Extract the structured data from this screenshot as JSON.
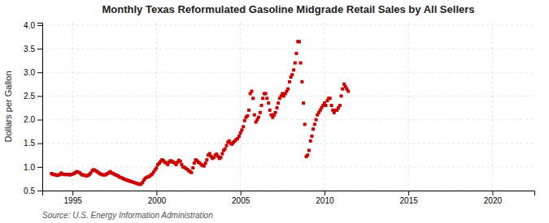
{
  "chart_data": {
    "type": "scatter",
    "title": "Monthly Texas Reformulated Gasoline Midgrade Retail Sales by All Sellers",
    "ylabel": "Dollars per Gallon",
    "annotations": [
      "Source: U.S. Energy Information Administration"
    ],
    "color": "#cc0000",
    "marker": "square",
    "grid": true,
    "xlim": [
      1993.2,
      2022.5
    ],
    "ylim": [
      0.5,
      4.05
    ],
    "xticks": [
      1995,
      2000,
      2005,
      2010,
      2015,
      2020
    ],
    "yticks": [
      0.5,
      {
        "value": 1.0,
        "label": "1.0"
      },
      1.5,
      {
        "value": 2.0,
        "label": "2.0"
      },
      2.5,
      {
        "value": 3.0,
        "label": "3.0"
      },
      3.5,
      {
        "value": 4.0,
        "label": "4.0"
      }
    ],
    "x": [
      1993.75,
      1993.83,
      1993.92,
      1994.0,
      1994.08,
      1994.17,
      1994.25,
      1994.33,
      1994.42,
      1994.5,
      1994.58,
      1994.67,
      1994.75,
      1994.83,
      1994.92,
      1995.0,
      1995.08,
      1995.17,
      1995.25,
      1995.33,
      1995.42,
      1995.5,
      1995.58,
      1995.67,
      1995.75,
      1995.83,
      1995.92,
      1996.0,
      1996.08,
      1996.17,
      1996.25,
      1996.33,
      1996.42,
      1996.5,
      1996.58,
      1996.67,
      1996.75,
      1996.83,
      1996.92,
      1997.0,
      1997.08,
      1997.17,
      1997.25,
      1997.33,
      1997.42,
      1997.5,
      1997.58,
      1997.67,
      1997.75,
      1997.83,
      1997.92,
      1998.0,
      1998.08,
      1998.17,
      1998.25,
      1998.33,
      1998.42,
      1998.5,
      1998.58,
      1998.67,
      1998.75,
      1998.83,
      1998.92,
      1999.0,
      1999.08,
      1999.17,
      1999.25,
      1999.33,
      1999.42,
      1999.5,
      1999.58,
      1999.67,
      1999.75,
      1999.83,
      1999.92,
      2000.0,
      2000.08,
      2000.17,
      2000.25,
      2000.33,
      2000.42,
      2000.5,
      2000.58,
      2000.67,
      2000.75,
      2000.83,
      2000.92,
      2001.0,
      2001.08,
      2001.17,
      2001.25,
      2001.33,
      2001.42,
      2001.5,
      2001.58,
      2001.67,
      2001.75,
      2001.83,
      2001.92,
      2002.0,
      2002.08,
      2002.17,
      2002.25,
      2002.33,
      2002.42,
      2002.5,
      2002.58,
      2002.67,
      2002.75,
      2002.83,
      2002.92,
      2003.0,
      2003.08,
      2003.17,
      2003.25,
      2003.33,
      2003.42,
      2003.5,
      2003.58,
      2003.67,
      2003.75,
      2003.83,
      2003.92,
      2004.0,
      2004.08,
      2004.17,
      2004.25,
      2004.33,
      2004.42,
      2004.5,
      2004.58,
      2004.67,
      2004.75,
      2004.83,
      2004.92,
      2005.0,
      2005.08,
      2005.17,
      2005.25,
      2005.33,
      2005.42,
      2005.5,
      2005.58,
      2005.67,
      2005.75,
      2005.83,
      2005.92,
      2006.0,
      2006.08,
      2006.17,
      2006.25,
      2006.33,
      2006.42,
      2006.5,
      2006.58,
      2006.67,
      2006.75,
      2006.83,
      2006.92,
      2007.0,
      2007.08,
      2007.17,
      2007.25,
      2007.33,
      2007.42,
      2007.5,
      2007.58,
      2007.67,
      2007.75,
      2007.83,
      2007.92,
      2008.0,
      2008.08,
      2008.17,
      2008.25,
      2008.33,
      2008.42,
      2008.5,
      2008.58,
      2008.67,
      2008.75,
      2008.83,
      2008.92,
      2009.0,
      2009.08,
      2009.17,
      2009.25,
      2009.33,
      2009.42,
      2009.5,
      2009.58,
      2009.67,
      2009.75,
      2009.83,
      2009.92,
      2010.0,
      2010.08,
      2010.17,
      2010.25,
      2010.33,
      2010.42,
      2010.5,
      2010.58,
      2010.67,
      2010.75,
      2010.83,
      2010.92,
      2011.0,
      2011.08,
      2011.17,
      2011.25,
      2011.33,
      2011.42
    ],
    "values": [
      0.86,
      0.84,
      0.84,
      0.83,
      0.82,
      0.83,
      0.84,
      0.87,
      0.85,
      0.84,
      0.84,
      0.84,
      0.84,
      0.83,
      0.84,
      0.85,
      0.86,
      0.88,
      0.9,
      0.89,
      0.88,
      0.85,
      0.83,
      0.83,
      0.82,
      0.81,
      0.82,
      0.84,
      0.87,
      0.92,
      0.94,
      0.93,
      0.91,
      0.89,
      0.87,
      0.85,
      0.84,
      0.83,
      0.83,
      0.84,
      0.86,
      0.88,
      0.9,
      0.87,
      0.86,
      0.84,
      0.83,
      0.82,
      0.8,
      0.78,
      0.77,
      0.76,
      0.74,
      0.73,
      0.72,
      0.71,
      0.7,
      0.69,
      0.68,
      0.67,
      0.66,
      0.65,
      0.64,
      0.63,
      0.64,
      0.67,
      0.72,
      0.76,
      0.78,
      0.79,
      0.8,
      0.83,
      0.85,
      0.89,
      0.94,
      0.98,
      1.05,
      1.08,
      1.12,
      1.15,
      1.13,
      1.1,
      1.08,
      1.05,
      1.1,
      1.13,
      1.12,
      1.1,
      1.08,
      1.05,
      1.1,
      1.14,
      1.12,
      1.05,
      1.0,
      0.99,
      0.97,
      0.95,
      0.92,
      0.9,
      0.88,
      0.98,
      1.08,
      1.15,
      1.13,
      1.1,
      1.08,
      1.05,
      1.03,
      1.02,
      1.08,
      1.15,
      1.25,
      1.28,
      1.22,
      1.18,
      1.2,
      1.25,
      1.27,
      1.22,
      1.18,
      1.2,
      1.28,
      1.35,
      1.38,
      1.45,
      1.52,
      1.55,
      1.5,
      1.48,
      1.52,
      1.55,
      1.58,
      1.6,
      1.65,
      1.72,
      1.78,
      1.85,
      1.98,
      2.05,
      2.08,
      2.2,
      2.55,
      2.6,
      2.45,
      2.1,
      1.95,
      2.0,
      2.05,
      2.15,
      2.3,
      2.45,
      2.55,
      2.55,
      2.45,
      2.35,
      2.2,
      2.1,
      2.05,
      2.1,
      2.15,
      2.25,
      2.35,
      2.45,
      2.5,
      2.55,
      2.5,
      2.55,
      2.6,
      2.65,
      2.8,
      2.9,
      2.95,
      3.05,
      3.2,
      3.4,
      3.65,
      3.65,
      3.2,
      2.8,
      2.35,
      1.9,
      1.22,
      1.25,
      1.35,
      1.55,
      1.65,
      1.8,
      1.9,
      2.0,
      2.1,
      2.15,
      2.2,
      2.25,
      2.3,
      2.35,
      2.3,
      2.4,
      2.45,
      2.45,
      2.3,
      2.2,
      2.15,
      2.2,
      2.2,
      2.25,
      2.3,
      2.5,
      2.65,
      2.75,
      2.7,
      2.65,
      2.6
    ]
  }
}
